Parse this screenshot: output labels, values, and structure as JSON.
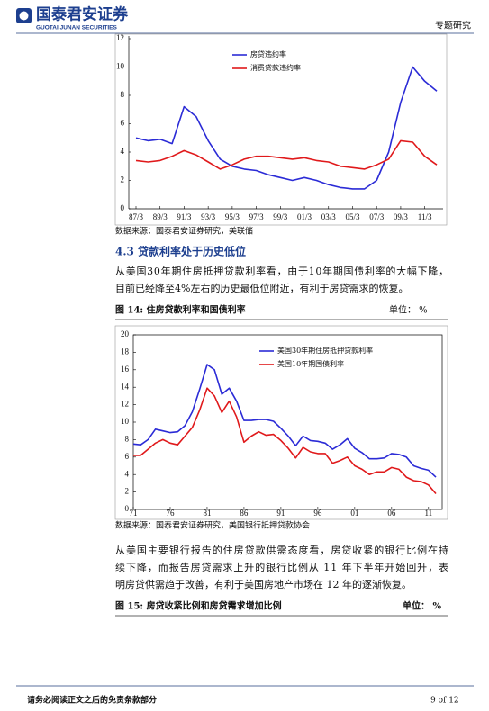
{
  "header": {
    "logo_cn": "国泰君安证券",
    "logo_en": "GUOTAI JUNAN SECURITIES",
    "doc_type": "专题研究"
  },
  "chart_data": [
    {
      "type": "line",
      "legend": "upper center",
      "grid": false,
      "categories": [
        "87/3",
        null,
        "89/3",
        null,
        "91/3",
        null,
        "93/3",
        null,
        "95/3",
        null,
        "97/3",
        null,
        "99/3",
        null,
        "01/3",
        null,
        "03/3",
        null,
        "05/3",
        null,
        "07/3",
        null,
        "09/3",
        null,
        "11/3",
        null
      ],
      "series": [
        {
          "name": "房贷违约率",
          "color": "#2b2bd6",
          "values": [
            5.0,
            4.8,
            4.9,
            4.6,
            7.2,
            6.5,
            4.8,
            3.5,
            3.0,
            2.8,
            2.7,
            2.4,
            2.2,
            2.0,
            2.2,
            2.0,
            1.7,
            1.5,
            1.4,
            1.4,
            2.0,
            4.0,
            7.5,
            10.0,
            9.0,
            8.3
          ]
        },
        {
          "name": "消费贷款违约率",
          "color": "#e0191b",
          "values": [
            3.4,
            3.3,
            3.4,
            3.7,
            4.1,
            3.8,
            3.3,
            2.8,
            3.1,
            3.5,
            3.7,
            3.7,
            3.6,
            3.5,
            3.6,
            3.4,
            3.3,
            3.0,
            2.9,
            2.8,
            3.1,
            3.5,
            4.8,
            4.7,
            3.7,
            3.1
          ]
        }
      ],
      "ylim": [
        0,
        12
      ],
      "yticks": [
        0,
        2,
        4,
        6,
        8,
        10,
        12
      ]
    },
    {
      "type": "line",
      "legend": "upper right",
      "grid": false,
      "categories": [
        "71",
        null,
        null,
        null,
        null,
        "76",
        null,
        null,
        null,
        null,
        "81",
        null,
        null,
        null,
        null,
        "86",
        null,
        null,
        null,
        null,
        "91",
        null,
        null,
        null,
        null,
        "96",
        null,
        null,
        null,
        null,
        "01",
        null,
        null,
        null,
        null,
        "06",
        null,
        null,
        null,
        null,
        "11",
        null
      ],
      "series": [
        {
          "name": "美国30年期住房抵押贷款利率",
          "color": "#2b2bd6",
          "values": [
            7.5,
            7.4,
            8.0,
            9.2,
            9.0,
            8.8,
            8.9,
            9.6,
            11.2,
            13.8,
            16.6,
            16.0,
            13.2,
            13.9,
            12.4,
            10.2,
            10.2,
            10.3,
            10.3,
            10.1,
            9.3,
            8.4,
            7.3,
            8.4,
            7.9,
            7.8,
            7.6,
            6.9,
            7.4,
            8.1,
            7.0,
            6.5,
            5.8,
            5.8,
            5.9,
            6.4,
            6.3,
            6.0,
            5.0,
            4.7,
            4.5,
            3.7
          ]
        },
        {
          "name": "美国10年期国债利率",
          "color": "#e0191b",
          "values": [
            6.2,
            6.2,
            6.9,
            7.6,
            8.0,
            7.6,
            7.4,
            8.4,
            9.4,
            11.4,
            13.9,
            13.0,
            11.1,
            12.4,
            10.6,
            7.7,
            8.4,
            8.9,
            8.5,
            8.6,
            7.9,
            7.0,
            5.9,
            7.1,
            6.6,
            6.4,
            6.4,
            5.3,
            5.6,
            6.0,
            5.0,
            4.6,
            4.0,
            4.3,
            4.3,
            4.8,
            4.6,
            3.7,
            3.3,
            3.2,
            2.8,
            1.8
          ]
        }
      ],
      "ylim": [
        0,
        20
      ],
      "yticks": [
        0,
        2,
        4,
        6,
        8,
        10,
        12,
        14,
        16,
        18,
        20
      ]
    }
  ],
  "source_1": "数据来源：国泰君安证券研究，美联储",
  "section_heading": "4.3  贷款利率处于历史低位",
  "paragraph_1": [
    "从美国30年期住房抵押贷款利率看，由于10年期国债利率的大幅下降，",
    "目前已经降至4%左右的历史最低位附近，有利于房贷需求的恢复。"
  ],
  "figure_14": {
    "caption": "图 14:  住房贷款利率和国债利率",
    "unit": "单位： %"
  },
  "source_2": "数据来源：国泰君安证券研究，美国银行抵押贷款协会",
  "paragraph_2": [
    "从美国主要银行报告的住房贷款供需态度看，房贷收紧的银行比例在持",
    "续下降，而报告房贷需求上升的银行比例从 11 年下半年开始回升，表",
    "明房贷供需趋于改善，有利于美国房地产市场在 12 年的逐渐恢复。"
  ],
  "figure_15": {
    "caption": "图 15:  房贷收紧比例和房贷需求增加比例",
    "unit": "单位：  %"
  },
  "footer": {
    "disclaimer": "请务必阅读正文之后的免责条款部分",
    "page": "9 of 12"
  }
}
